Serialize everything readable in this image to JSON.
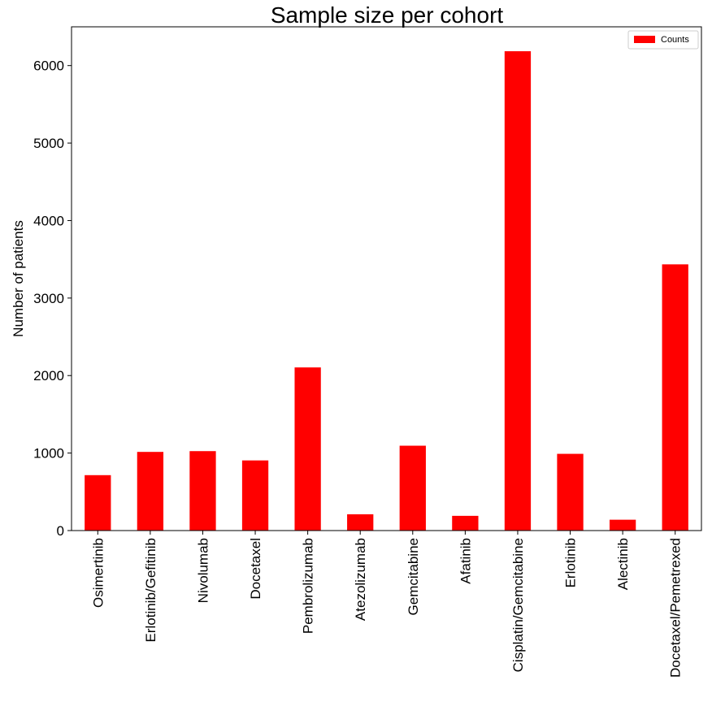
{
  "chart_data": {
    "type": "bar",
    "title": "Sample size per cohort",
    "xlabel": "",
    "ylabel": "Number of patients",
    "categories": [
      "Osimertinib",
      "Erlotinib/Gefitinib",
      "Nivolumab",
      "Docetaxel",
      "Pembrolizumab",
      "Atezolizumab",
      "Gemcitabine",
      "Afatinib",
      "Cisplatin/Gemcitabine",
      "Erlotinib",
      "Alectinib",
      "Docetaxel/Pemetrexed"
    ],
    "series": [
      {
        "name": "Counts",
        "values": [
          715,
          1015,
          1025,
          905,
          2105,
          210,
          1095,
          190,
          6185,
          990,
          140,
          3435
        ]
      }
    ],
    "ylim": [
      0,
      6500
    ],
    "yticks": [
      0,
      1000,
      2000,
      3000,
      4000,
      5000,
      6000
    ],
    "grid": false,
    "legend_position": "top-right",
    "bar_color": "#ff0000"
  }
}
